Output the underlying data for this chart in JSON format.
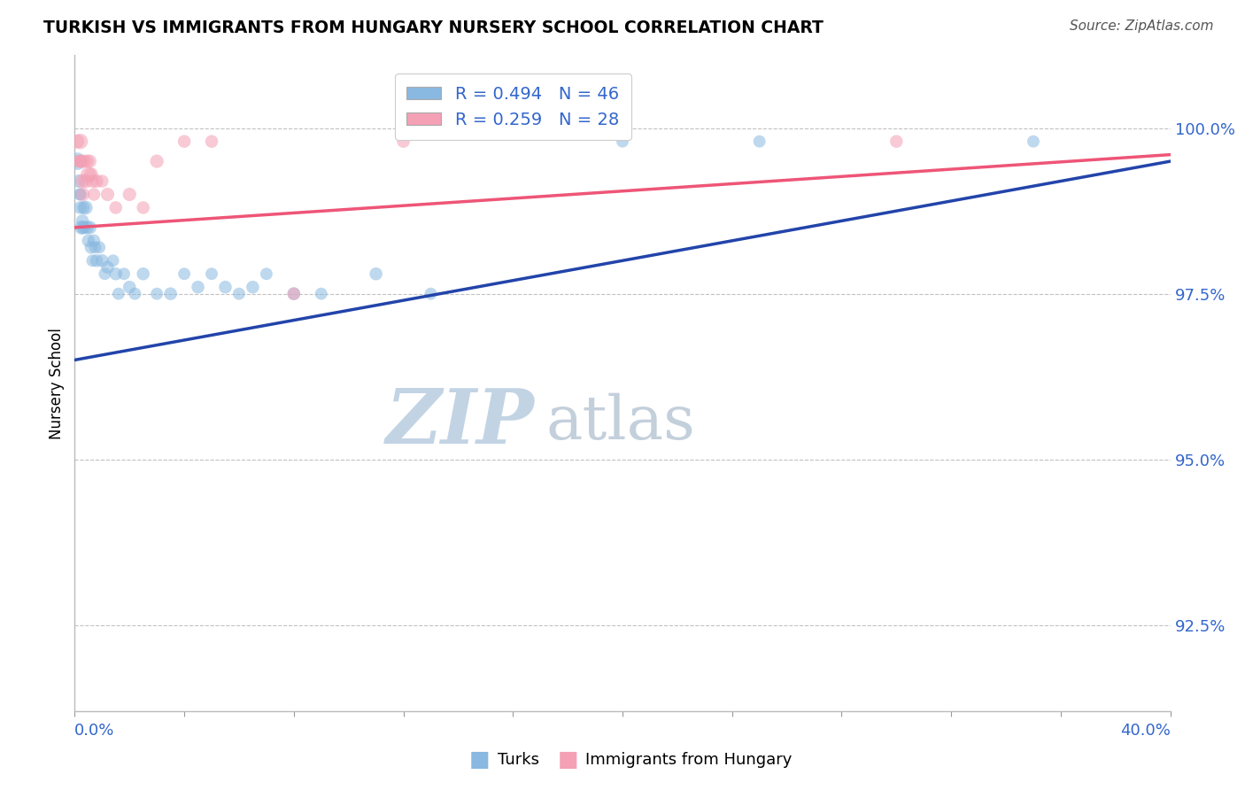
{
  "title": "TURKISH VS IMMIGRANTS FROM HUNGARY NURSERY SCHOOL CORRELATION CHART",
  "source": "Source: ZipAtlas.com",
  "ylabel": "Nursery School",
  "ytick_labels": [
    "100.0%",
    "97.5%",
    "95.0%",
    "92.5%"
  ],
  "ytick_values": [
    100.0,
    97.5,
    95.0,
    92.5
  ],
  "xmin": 0.0,
  "xmax": 40.0,
  "ymin": 91.2,
  "ymax": 101.1,
  "legend_blue_label": "R = 0.494   N = 46",
  "legend_pink_label": "R = 0.259   N = 28",
  "turks_label": "Turks",
  "hungary_label": "Immigrants from Hungary",
  "blue_color": "#89B8E0",
  "pink_color": "#F4A0B5",
  "blue_line_color": "#2244AA",
  "pink_line_color": "#EE5577",
  "blue_trend": [
    96.5,
    99.5
  ],
  "pink_trend": [
    98.5,
    99.6
  ],
  "blue_scatter_x": [
    0.1,
    0.15,
    0.18,
    0.2,
    0.22,
    0.25,
    0.28,
    0.3,
    0.32,
    0.35,
    0.4,
    0.45,
    0.5,
    0.55,
    0.6,
    0.65,
    0.7,
    0.75,
    0.8,
    0.9,
    1.0,
    1.1,
    1.2,
    1.4,
    1.5,
    1.6,
    1.8,
    2.0,
    2.2,
    2.5,
    3.0,
    3.5,
    4.0,
    4.5,
    5.0,
    5.5,
    6.0,
    6.5,
    7.0,
    8.0,
    9.0,
    11.0,
    13.0,
    20.0,
    25.0,
    35.0
  ],
  "blue_scatter_y": [
    99.5,
    99.2,
    99.0,
    98.8,
    99.0,
    98.5,
    98.6,
    98.5,
    98.8,
    98.5,
    98.8,
    98.5,
    98.3,
    98.5,
    98.2,
    98.0,
    98.3,
    98.2,
    98.0,
    98.2,
    98.0,
    97.8,
    97.9,
    98.0,
    97.8,
    97.5,
    97.8,
    97.6,
    97.5,
    97.8,
    97.5,
    97.5,
    97.8,
    97.6,
    97.8,
    97.6,
    97.5,
    97.6,
    97.8,
    97.5,
    97.5,
    97.8,
    97.5,
    99.8,
    99.8,
    99.8
  ],
  "blue_scatter_s": [
    200,
    120,
    100,
    110,
    100,
    130,
    110,
    120,
    110,
    100,
    130,
    120,
    110,
    120,
    110,
    100,
    110,
    100,
    110,
    100,
    110,
    100,
    110,
    100,
    110,
    100,
    100,
    110,
    100,
    110,
    100,
    110,
    100,
    110,
    100,
    110,
    100,
    110,
    100,
    110,
    100,
    110,
    100,
    100,
    100,
    100
  ],
  "pink_scatter_x": [
    0.1,
    0.15,
    0.18,
    0.2,
    0.22,
    0.25,
    0.28,
    0.3,
    0.35,
    0.4,
    0.45,
    0.5,
    0.55,
    0.6,
    0.65,
    0.7,
    0.8,
    1.0,
    1.2,
    1.5,
    2.0,
    2.5,
    3.0,
    4.0,
    5.0,
    8.0,
    12.0,
    30.0
  ],
  "pink_scatter_y": [
    99.8,
    99.5,
    99.5,
    99.8,
    99.5,
    99.5,
    99.2,
    99.0,
    99.5,
    99.2,
    99.5,
    99.3,
    99.5,
    99.3,
    99.2,
    99.0,
    99.2,
    99.2,
    99.0,
    98.8,
    99.0,
    98.8,
    99.5,
    99.8,
    99.8,
    97.5,
    99.8,
    99.8
  ],
  "pink_scatter_s": [
    130,
    110,
    100,
    160,
    120,
    110,
    130,
    120,
    110,
    130,
    120,
    160,
    120,
    130,
    120,
    110,
    120,
    110,
    120,
    110,
    120,
    110,
    120,
    110,
    110,
    110,
    110,
    110
  ],
  "watermark_zip_color": "#B8CCE0",
  "watermark_atlas_color": "#AABCCC"
}
